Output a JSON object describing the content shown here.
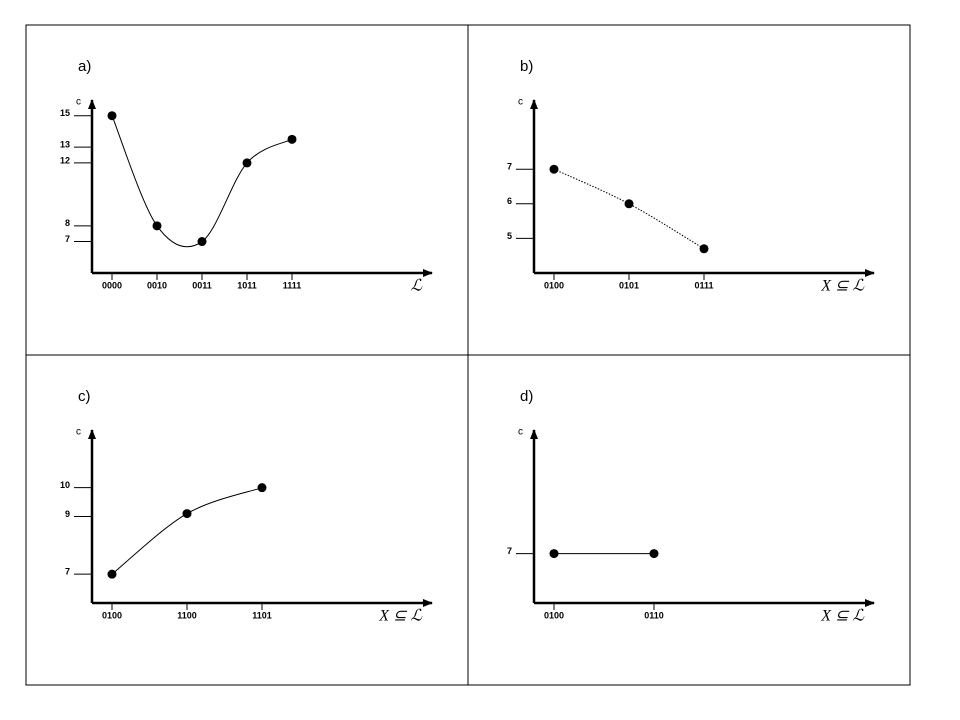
{
  "chart_data": [
    {
      "type": "line",
      "title": "a)",
      "y_label": "c",
      "x_label": "ℒ",
      "line_style": "solid",
      "color": "#000000",
      "categories": [
        "0000",
        "0010",
        "0011",
        "1011",
        "1111"
      ],
      "values": [
        15,
        8,
        7,
        12,
        13.5
      ],
      "ylim": [
        5,
        16
      ],
      "yticks": [
        7,
        8,
        12,
        13,
        15
      ]
    },
    {
      "type": "line",
      "title": "b)",
      "y_label": "c",
      "x_label": "X ⊆ ℒ",
      "line_style": "dotted",
      "color": "#000000",
      "categories": [
        "0100",
        "0101",
        "0111"
      ],
      "values": [
        7,
        6,
        4.7
      ],
      "ylim": [
        4,
        9
      ],
      "yticks": [
        5,
        6,
        7
      ]
    },
    {
      "type": "line",
      "title": "c)",
      "y_label": "c",
      "x_label": "X ⊆ ℒ",
      "line_style": "solid",
      "color": "#000000",
      "categories": [
        "0100",
        "1100",
        "1101"
      ],
      "values": [
        7,
        9.1,
        10
      ],
      "ylim": [
        6,
        12
      ],
      "yticks": [
        7,
        9,
        10
      ]
    },
    {
      "type": "line",
      "title": "d)",
      "y_label": "c",
      "x_label": "X ⊆ ℒ",
      "line_style": "solid",
      "color": "#000000",
      "categories": [
        "0100",
        "0110"
      ],
      "values": [
        7,
        7
      ],
      "ylim": [
        5,
        12
      ],
      "yticks": [
        7
      ]
    }
  ]
}
